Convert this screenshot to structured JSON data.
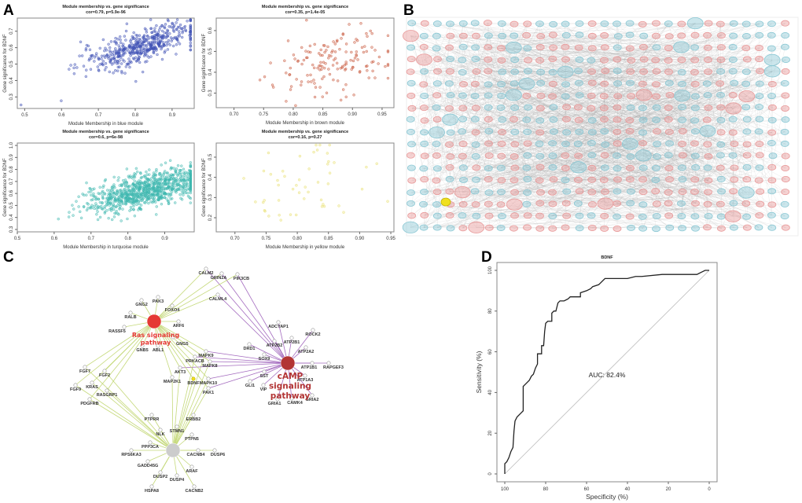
{
  "panel_labels": [
    "A",
    "B",
    "C",
    "D"
  ],
  "chart_data": [
    {
      "panel": "A",
      "type": "scatter",
      "module": "blue",
      "color": "#3f51b5",
      "title": "Module membership vs. gene significance",
      "subtitle": "cor=0.79, p=5.9e-96",
      "xlabel": "Module Membership in blue module",
      "ylabel": "Gene significance for BDNF",
      "xlim": [
        0.48,
        0.96
      ],
      "ylim": [
        0.23,
        0.78
      ],
      "xticks": [
        "0.5",
        "0.6",
        "0.7",
        "0.8",
        "0.9"
      ],
      "yticks": [
        "0.3",
        "0.4",
        "0.5",
        "0.6",
        "0.7"
      ],
      "approx_points": 500,
      "corr": 0.79,
      "x_center": 0.82,
      "y_intercept": 0.02,
      "slope": 0.72,
      "noise": 0.05
    },
    {
      "panel": "A",
      "type": "scatter",
      "module": "brown",
      "color": "#c8583c",
      "title": "Module membership vs. gene significance",
      "subtitle": "cor=0.35, p=1.4e-05",
      "xlabel": "Module Membership in brown module",
      "ylabel": "Gene significance for BDNF",
      "xlim": [
        0.67,
        0.97
      ],
      "ylim": [
        0.23,
        0.66
      ],
      "xticks": [
        "0.70",
        "0.75",
        "0.80",
        "0.85",
        "0.90",
        "0.95"
      ],
      "yticks": [
        "0.3",
        "0.4",
        "0.5",
        "0.6"
      ],
      "approx_points": 150,
      "corr": 0.35,
      "x_center": 0.87,
      "y_intercept": 0.0,
      "slope": 0.52,
      "noise": 0.08
    },
    {
      "panel": "A",
      "type": "scatter",
      "module": "turquoise",
      "color": "#3fb8b0",
      "title": "Module membership vs. gene significance",
      "subtitle": "cor=0.6, p=6e-98",
      "xlabel": "Module Membership in turquoise module",
      "ylabel": "Gene significance for BDNF",
      "xlim": [
        0.5,
        0.98
      ],
      "ylim": [
        0.28,
        1.02
      ],
      "xticks": [
        "0.5",
        "0.6",
        "0.7",
        "0.8",
        "0.9"
      ],
      "yticks": [
        "0.3",
        "0.4",
        "0.5",
        "0.6",
        "0.7",
        "0.8",
        "0.9",
        "1.0"
      ],
      "approx_points": 900,
      "corr": 0.6,
      "x_center": 0.85,
      "y_intercept": 0.05,
      "slope": 0.68,
      "noise": 0.07
    },
    {
      "panel": "A",
      "type": "scatter",
      "module": "yellow",
      "color": "#e8e070",
      "title": "Module membership vs. gene significance",
      "subtitle": "cor=0.16, p=0.27",
      "xlabel": "Module Membership in yellow module",
      "ylabel": "Gene significance for BDNF",
      "xlim": [
        0.67,
        0.955
      ],
      "ylim": [
        0.13,
        0.57
      ],
      "xticks": [
        "0.70",
        "0.75",
        "0.80",
        "0.85",
        "0.90",
        "0.95"
      ],
      "yticks": [
        "0.2",
        "0.3",
        "0.4",
        "0.5"
      ],
      "approx_points": 50,
      "corr": 0.16,
      "x_center": 0.82,
      "y_intercept": 0.2,
      "slope": 0.22,
      "noise": 0.1
    },
    {
      "panel": "D",
      "type": "line",
      "title": "BDNF",
      "xlabel": "Specificity (%)",
      "ylabel": "Sensitivity (%)",
      "xlim": [
        100,
        0
      ],
      "ylim": [
        0,
        100
      ],
      "xticks": [
        "100",
        "80",
        "60",
        "40",
        "20",
        "0"
      ],
      "yticks": [
        "0",
        "20",
        "40",
        "60",
        "80",
        "100"
      ],
      "annotation": "AUC: 82.4%",
      "roc": [
        [
          100,
          0
        ],
        [
          100,
          5
        ],
        [
          99,
          6
        ],
        [
          98,
          8
        ],
        [
          97,
          11
        ],
        [
          96,
          13
        ],
        [
          95.5,
          21
        ],
        [
          95,
          26
        ],
        [
          94,
          28
        ],
        [
          92,
          30
        ],
        [
          91,
          31
        ],
        [
          91,
          43
        ],
        [
          90,
          44
        ],
        [
          88,
          46
        ],
        [
          87,
          48
        ],
        [
          86,
          49
        ],
        [
          85,
          52
        ],
        [
          84,
          54
        ],
        [
          84,
          59
        ],
        [
          82,
          59
        ],
        [
          82,
          63
        ],
        [
          81,
          63
        ],
        [
          80.5,
          70
        ],
        [
          80,
          74
        ],
        [
          79,
          75
        ],
        [
          77,
          75
        ],
        [
          77,
          79
        ],
        [
          76,
          80
        ],
        [
          75,
          80
        ],
        [
          74.5,
          82
        ],
        [
          74,
          84
        ],
        [
          73,
          85
        ],
        [
          71,
          85
        ],
        [
          69,
          86
        ],
        [
          68,
          87
        ],
        [
          63,
          87
        ],
        [
          63,
          89
        ],
        [
          60,
          90
        ],
        [
          58,
          91
        ],
        [
          57,
          92
        ],
        [
          54,
          93
        ],
        [
          53,
          94
        ],
        [
          51,
          96
        ],
        [
          40,
          96
        ],
        [
          36,
          97
        ],
        [
          33,
          97
        ],
        [
          23,
          98
        ],
        [
          6,
          98
        ],
        [
          4,
          99
        ],
        [
          2,
          100
        ],
        [
          0,
          100
        ]
      ]
    }
  ],
  "network_b": {
    "node_colors": {
      "up": "#e89a9a",
      "down": "#8cc8d4",
      "highlight": "#f0e020"
    },
    "columns": 30,
    "rows": 18
  },
  "network_c": {
    "hubs": [
      {
        "id": "ras",
        "label": [
          "Ras signaling",
          "pathway"
        ],
        "color": "#e53935",
        "edge_color": "#c5d97a"
      },
      {
        "id": "camp",
        "label": [
          "cAMP",
          "signaling",
          "pathway"
        ],
        "color": "#b23434",
        "edge_color": "#a46bbf"
      },
      {
        "id": "mapk",
        "label": [],
        "color": "#cccccc",
        "edge_color": "#c5d97a"
      }
    ],
    "genes": [
      {
        "name": "CALM2",
        "hubs": [
          "ras",
          "camp"
        ]
      },
      {
        "name": "GRIN2A",
        "hubs": [
          "camp",
          "ras"
        ]
      },
      {
        "name": "PIK3CB",
        "hubs": [
          "ras",
          "camp"
        ]
      },
      {
        "name": "CALML4",
        "hubs": [
          "ras",
          "camp"
        ]
      },
      {
        "name": "PAK3",
        "hubs": [
          "ras"
        ]
      },
      {
        "name": "GNG2",
        "hubs": [
          "ras"
        ]
      },
      {
        "name": "FOXO4",
        "hubs": [
          "ras"
        ]
      },
      {
        "name": "RALB",
        "hubs": [
          "ras"
        ]
      },
      {
        "name": "ARF6",
        "hubs": [
          "ras"
        ]
      },
      {
        "name": "RASSF5",
        "hubs": [
          "ras"
        ]
      },
      {
        "name": "GNG5",
        "hubs": [
          "ras"
        ]
      },
      {
        "name": "GNB5",
        "hubs": [
          "ras"
        ]
      },
      {
        "name": "ABL1",
        "hubs": [
          "ras"
        ]
      },
      {
        "name": "ADCYAP1",
        "hubs": [
          "camp"
        ]
      },
      {
        "name": "ROCK2",
        "hubs": [
          "camp"
        ]
      },
      {
        "name": "ATP2B1",
        "hubs": [
          "camp"
        ]
      },
      {
        "name": "ATP2B2",
        "hubs": [
          "camp"
        ]
      },
      {
        "name": "ATP2A2",
        "hubs": [
          "camp"
        ]
      },
      {
        "name": "DRD1",
        "hubs": [
          "camp"
        ]
      },
      {
        "name": "MAPK9",
        "hubs": [
          "ras",
          "camp",
          "mapk"
        ]
      },
      {
        "name": "SOX9",
        "hubs": [
          "camp"
        ]
      },
      {
        "name": "PRKACB",
        "hubs": [
          "ras",
          "camp",
          "mapk"
        ]
      },
      {
        "name": "MAPK8",
        "hubs": [
          "ras",
          "camp",
          "mapk"
        ]
      },
      {
        "name": "ATP1B1",
        "hubs": [
          "camp"
        ]
      },
      {
        "name": "RAPGEF3",
        "hubs": [
          "camp"
        ]
      },
      {
        "name": "AKT3",
        "hubs": [
          "ras",
          "camp",
          "mapk"
        ]
      },
      {
        "name": "SST",
        "hubs": [
          "camp"
        ]
      },
      {
        "name": "ATP1A3",
        "hubs": [
          "camp"
        ]
      },
      {
        "name": "FGF7",
        "hubs": [
          "ras",
          "mapk"
        ]
      },
      {
        "name": "FGF2",
        "hubs": [
          "ras",
          "mapk"
        ]
      },
      {
        "name": "MAP2K1",
        "hubs": [
          "ras",
          "mapk"
        ]
      },
      {
        "name": "BDNF",
        "hubs": [
          "ras",
          "mapk"
        ],
        "highlight": true
      },
      {
        "name": "MAPK10",
        "hubs": [
          "ras",
          "camp",
          "mapk"
        ]
      },
      {
        "name": "GLI1",
        "hubs": [
          "camp"
        ]
      },
      {
        "name": "VIP",
        "hubs": [
          "camp"
        ]
      },
      {
        "name": "KRAS",
        "hubs": [
          "ras",
          "mapk"
        ]
      },
      {
        "name": "FGF9",
        "hubs": [
          "ras",
          "mapk"
        ]
      },
      {
        "name": "RASGRP1",
        "hubs": [
          "ras",
          "mapk"
        ]
      },
      {
        "name": "PAK1",
        "hubs": [
          "ras",
          "camp",
          "mapk"
        ]
      },
      {
        "name": "GRIA1",
        "hubs": [
          "camp"
        ]
      },
      {
        "name": "CAMK4",
        "hubs": [
          "camp"
        ]
      },
      {
        "name": "GRIA2",
        "hubs": [
          "camp"
        ]
      },
      {
        "name": "PDGFRB",
        "hubs": [
          "ras",
          "mapk"
        ]
      },
      {
        "name": "PTPRR",
        "hubs": [
          "mapk"
        ]
      },
      {
        "name": "ERBB2",
        "hubs": [
          "mapk"
        ]
      },
      {
        "name": "STMN1",
        "hubs": [
          "mapk"
        ]
      },
      {
        "name": "NLK",
        "hubs": [
          "mapk"
        ]
      },
      {
        "name": "PTPN5",
        "hubs": [
          "mapk"
        ]
      },
      {
        "name": "PPP3CA",
        "hubs": [
          "mapk"
        ]
      },
      {
        "name": "RPS6KA3",
        "hubs": [
          "mapk"
        ]
      },
      {
        "name": "CACNB4",
        "hubs": [
          "mapk"
        ]
      },
      {
        "name": "DUSP6",
        "hubs": [
          "mapk"
        ]
      },
      {
        "name": "GADD45G",
        "hubs": [
          "mapk"
        ]
      },
      {
        "name": "ARAF",
        "hubs": [
          "mapk"
        ]
      },
      {
        "name": "DUSP2",
        "hubs": [
          "mapk"
        ]
      },
      {
        "name": "DUSP4",
        "hubs": [
          "mapk"
        ]
      },
      {
        "name": "HSPA8",
        "hubs": [
          "mapk"
        ]
      },
      {
        "name": "CACNB2",
        "hubs": [
          "mapk"
        ]
      }
    ]
  }
}
